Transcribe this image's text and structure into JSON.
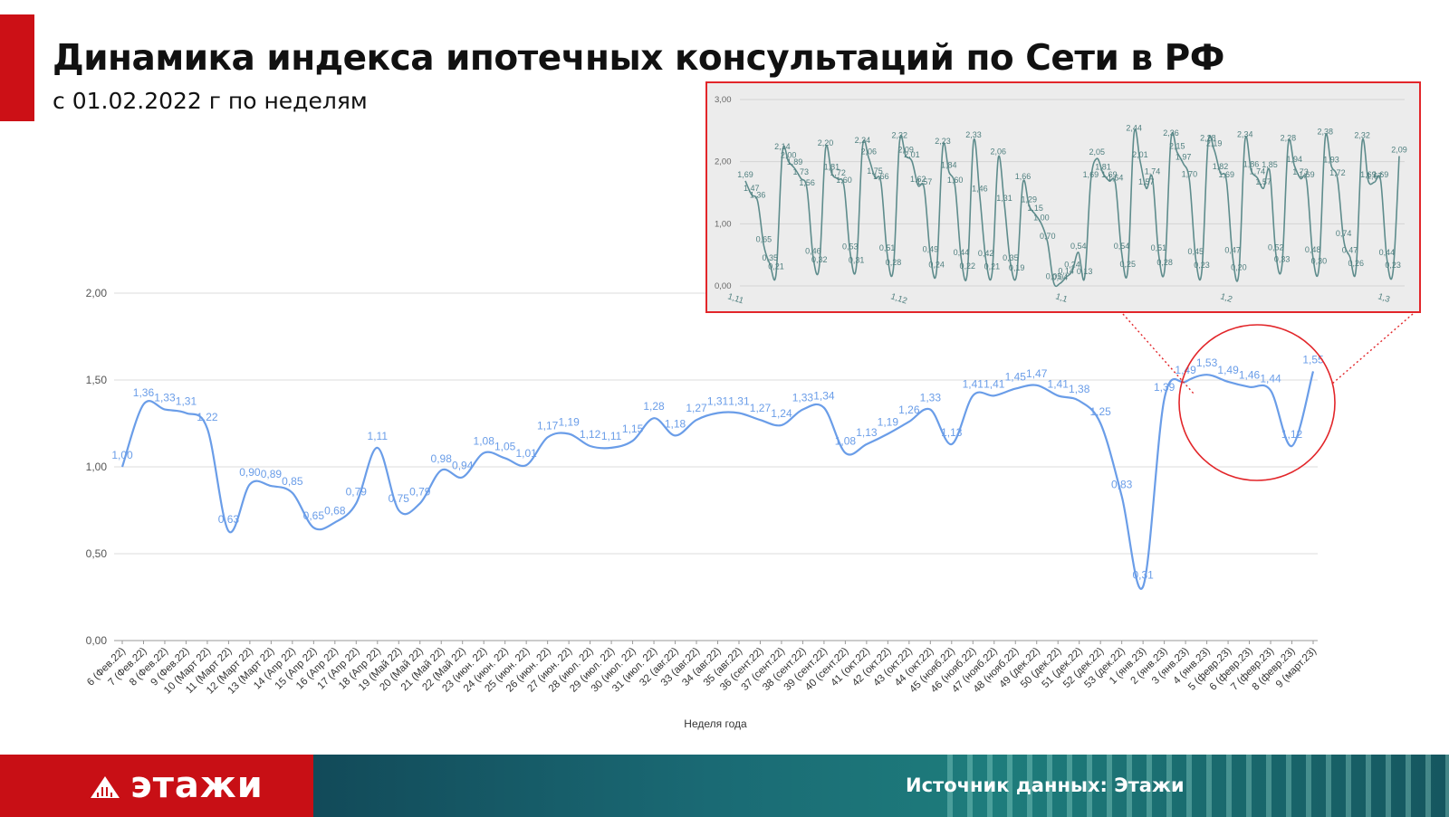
{
  "header": {
    "title": "Динамика индекса ипотечных консультаций по Сети в РФ",
    "subtitle": "с 01.02.2022 г по неделям"
  },
  "footer": {
    "logo_text": "этажи",
    "source": "Источник данных: Этажи"
  },
  "colors": {
    "accent_red": "#cc1016",
    "line_blue": "#6a9de8",
    "label_blue": "#6a9de8",
    "inset_line": "#5e8c8c",
    "highlight_red": "#e2262a"
  },
  "chart_data": [
    {
      "type": "line",
      "xlabel": "Неделя года",
      "ylabel": "",
      "ylim": [
        0,
        2
      ],
      "yticks": [
        "0,00",
        "0,50",
        "1,00",
        "1,50",
        "2,00"
      ],
      "grid": true,
      "categories": [
        "6 (Фев.22)",
        "7 (Фев.22)",
        "8 (Фев.22)",
        "9 (Фев.22)",
        "10 (Март 22)",
        "11 (Март 22)",
        "12 (Март 22)",
        "13 (Март 22)",
        "14 (Апр 22)",
        "15 (Апр 22)",
        "16 (Апр 22)",
        "17 (Апр 22)",
        "18 (Апр 22)",
        "19 (Май 22)",
        "20 (Май 22)",
        "21 (Май 22)",
        "22 (Май 22)",
        "23 (июн. 22)",
        "24 (июн. 22)",
        "25 (июн. 22)",
        "26 (июн. 22)",
        "27 (июн. 22)",
        "28 (июл. 22)",
        "29 (июл. 22)",
        "30 (июл. 22)",
        "31 (июл. 22)",
        "32 (авг.22)",
        "33 (авг.22)",
        "34 (авг.22)",
        "35 (авг.22)",
        "36 (сент.22)",
        "37 (сент.22)",
        "38 (сент.22)",
        "39 (сент.22)",
        "40 (сент.22)",
        "41 (окт.22)",
        "42 (окт.22)",
        "43 (окт.22)",
        "44 (окт.22)",
        "45 (нояб.22)",
        "46 (нояб.22)",
        "47 (нояб.22)",
        "48 (нояб.22)",
        "49 (дек.22)",
        "50 (дек.22)",
        "51 (дек.22)",
        "52 (дек.22)",
        "53 (дек.22)",
        "1 (янв.23)",
        "2 (янв.23)",
        "3 (янв.23)",
        "4 (янв.23)",
        "5 (февр.23)",
        "6 (февр.23)",
        "7 (февр.23)",
        "8 (февр.23)",
        "9 (март.23)"
      ],
      "values": [
        1.0,
        1.36,
        1.33,
        1.31,
        1.22,
        0.63,
        0.9,
        0.89,
        0.85,
        0.65,
        0.68,
        0.79,
        1.11,
        0.75,
        0.79,
        0.98,
        0.94,
        1.08,
        1.05,
        1.01,
        1.17,
        1.19,
        1.12,
        1.11,
        1.15,
        1.28,
        1.18,
        1.27,
        1.31,
        1.31,
        1.27,
        1.24,
        1.33,
        1.34,
        1.08,
        1.13,
        1.19,
        1.26,
        1.33,
        1.13,
        1.41,
        1.41,
        1.45,
        1.47,
        1.41,
        1.38,
        1.25,
        0.83,
        0.31,
        1.39,
        1.49,
        1.53,
        1.49,
        1.46,
        1.44,
        1.12,
        1.55
      ],
      "data_labels": [
        "1,00",
        "1,36",
        "1,33",
        "1,31",
        "1,22",
        "0,63",
        "0,90",
        "0,89",
        "0,85",
        "0,65",
        "0,68",
        "0,79",
        "1,11",
        "0,75",
        "0,79",
        "0,98",
        "0,94",
        "1,08",
        "1,05",
        "1,01",
        "1,17",
        "1,19",
        "1,12",
        "1,11",
        "1,15",
        "1,28",
        "1,18",
        "1,27",
        "1,31",
        "1,31",
        "1,27",
        "1,24",
        "1,33",
        "1,34",
        "1,08",
        "1,13",
        "1,19",
        "1,26",
        "1,33",
        "1,13",
        "1,41",
        "1,41",
        "1,45",
        "1,47",
        "1,41",
        "1,38",
        "1,25",
        "0,83",
        "0,31",
        "1,39",
        "1,49",
        "1,53",
        "1,49",
        "1,46",
        "1,44",
        "1,12",
        "1,55"
      ],
      "highlight": "circle around weeks 4–9 (янв.–март 23)"
    },
    {
      "type": "line",
      "role": "inset",
      "ylim": [
        0,
        3
      ],
      "yticks": [
        "0,00",
        "1,00",
        "2,00",
        "3,00"
      ],
      "xtick_labels": [
        "1,11",
        "1,12",
        "1,1",
        "1,2",
        "1,3"
      ],
      "grid": true,
      "data_labels": [
        "1,69",
        "1,47",
        "1,36",
        "0,65",
        "0,35",
        "0,21",
        "2,14",
        "2,00",
        "1,89",
        "1,73",
        "1,56",
        "0,46",
        "0,32",
        "2,20",
        "1,81",
        "1,72",
        "1,60",
        "0,53",
        "0,31",
        "2,24",
        "2,06",
        "1,75",
        "1,66",
        "0,51",
        "0,28",
        "2,32",
        "2,09",
        "2,01",
        "1,62",
        "1,57",
        "0,49",
        "0,24",
        "2,23",
        "1,84",
        "1,60",
        "0,44",
        "0,22",
        "2,33",
        "1,46",
        "0,42",
        "0,21",
        "2,06",
        "1,31",
        "0,35",
        "0,19",
        "1,66",
        "1,29",
        "1,15",
        "1,00",
        "0,70",
        "0,05",
        "0,04",
        "0,14",
        "0,24",
        "0,54",
        "0,13",
        "1,69",
        "2,05",
        "1,81",
        "1,69",
        "1,64",
        "0,54",
        "0,25",
        "2,44",
        "2,01",
        "1,57",
        "1,74",
        "0,51",
        "0,28",
        "2,36",
        "2,15",
        "1,97",
        "1,70",
        "0,45",
        "0,23",
        "2,28",
        "2,19",
        "1,82",
        "1,69",
        "0,47",
        "0,20",
        "2,34",
        "1,86",
        "1,74",
        "1,57",
        "1,85",
        "0,52",
        "0,33",
        "2,28",
        "1,94",
        "1,73",
        "1,69",
        "0,48",
        "0,30",
        "2,38",
        "1,93",
        "1,72",
        "0,74",
        "0,47",
        "0,26",
        "2,32",
        "1,69",
        "1,67",
        "1,69",
        "0,44",
        "0,23",
        "2,09"
      ]
    }
  ]
}
